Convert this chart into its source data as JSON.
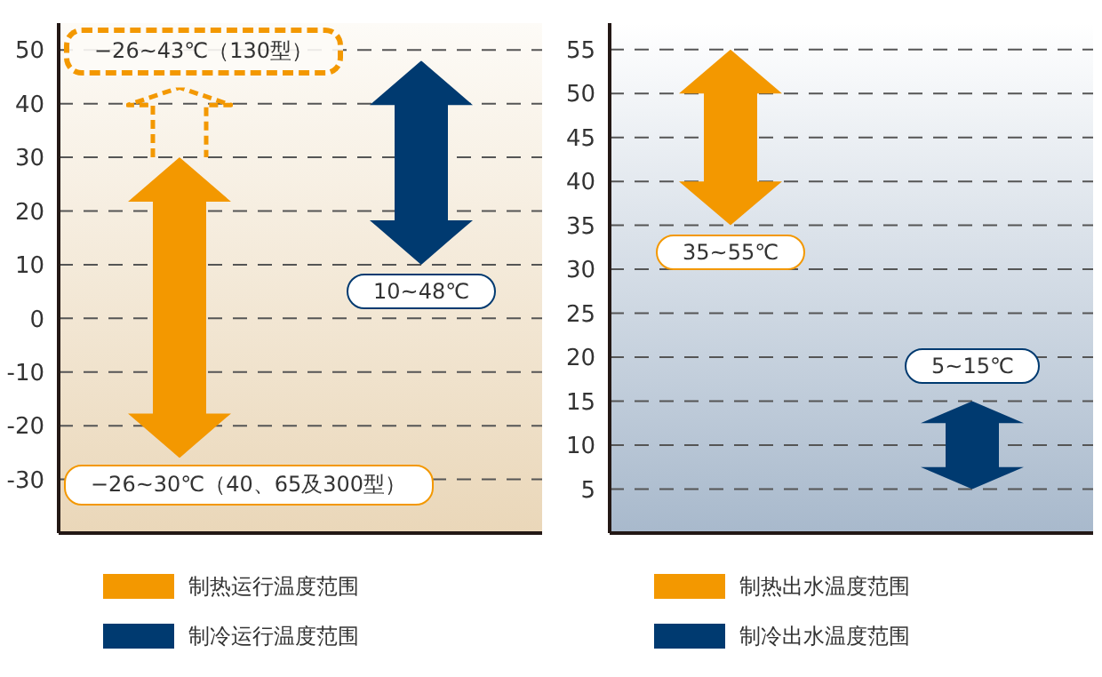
{
  "chart_data": [
    {
      "type": "bar",
      "categories": [
        null,
        null
      ],
      "ylim": [
        -40,
        55
      ],
      "yticks": [
        -30,
        -20,
        -10,
        0,
        10,
        20,
        30,
        40,
        50
      ],
      "grid": "y",
      "legend": "bottom",
      "tick_labels": "y",
      "series": [
        {
          "name": "制热运行温度范围",
          "color": "#f39800",
          "values": [
            56,
            null
          ],
          "base": [
            -26,
            null
          ]
        },
        {
          "color": "#f39800",
          "values": [
            13,
            null
          ],
          "base": [
            30,
            null
          ],
          "line_style": "dashed"
        },
        {
          "name": "制冷运行温度范围",
          "color": "#003a70",
          "values": [
            null,
            38
          ],
          "base": [
            null,
            10
          ]
        }
      ],
      "annotations": [
        {
          "text": "−26~43℃（130型）",
          "y": 43
        },
        {
          "text": "10~48℃",
          "y": 10
        },
        "−26~30℃（40、65及300型）"
      ]
    },
    {
      "type": "bar",
      "categories": [
        null,
        null
      ],
      "ylim": [
        0,
        58
      ],
      "yticks": [
        5,
        10,
        15,
        20,
        25,
        30,
        35,
        40,
        45,
        50,
        55
      ],
      "grid": "y",
      "legend": "bottom",
      "tick_labels": "y",
      "series": [
        {
          "name": "制热出水温度范围",
          "color": "#f39800",
          "values": [
            20,
            null
          ],
          "base": [
            35,
            null
          ]
        },
        {
          "name": "制冷出水温度范围",
          "color": "#003a70",
          "values": [
            null,
            10
          ],
          "base": [
            null,
            5
          ]
        }
      ],
      "annotations": [
        {
          "text": "35~55℃",
          "y": 35
        },
        {
          "text": "5~15℃",
          "y": 15
        }
      ]
    }
  ]
}
